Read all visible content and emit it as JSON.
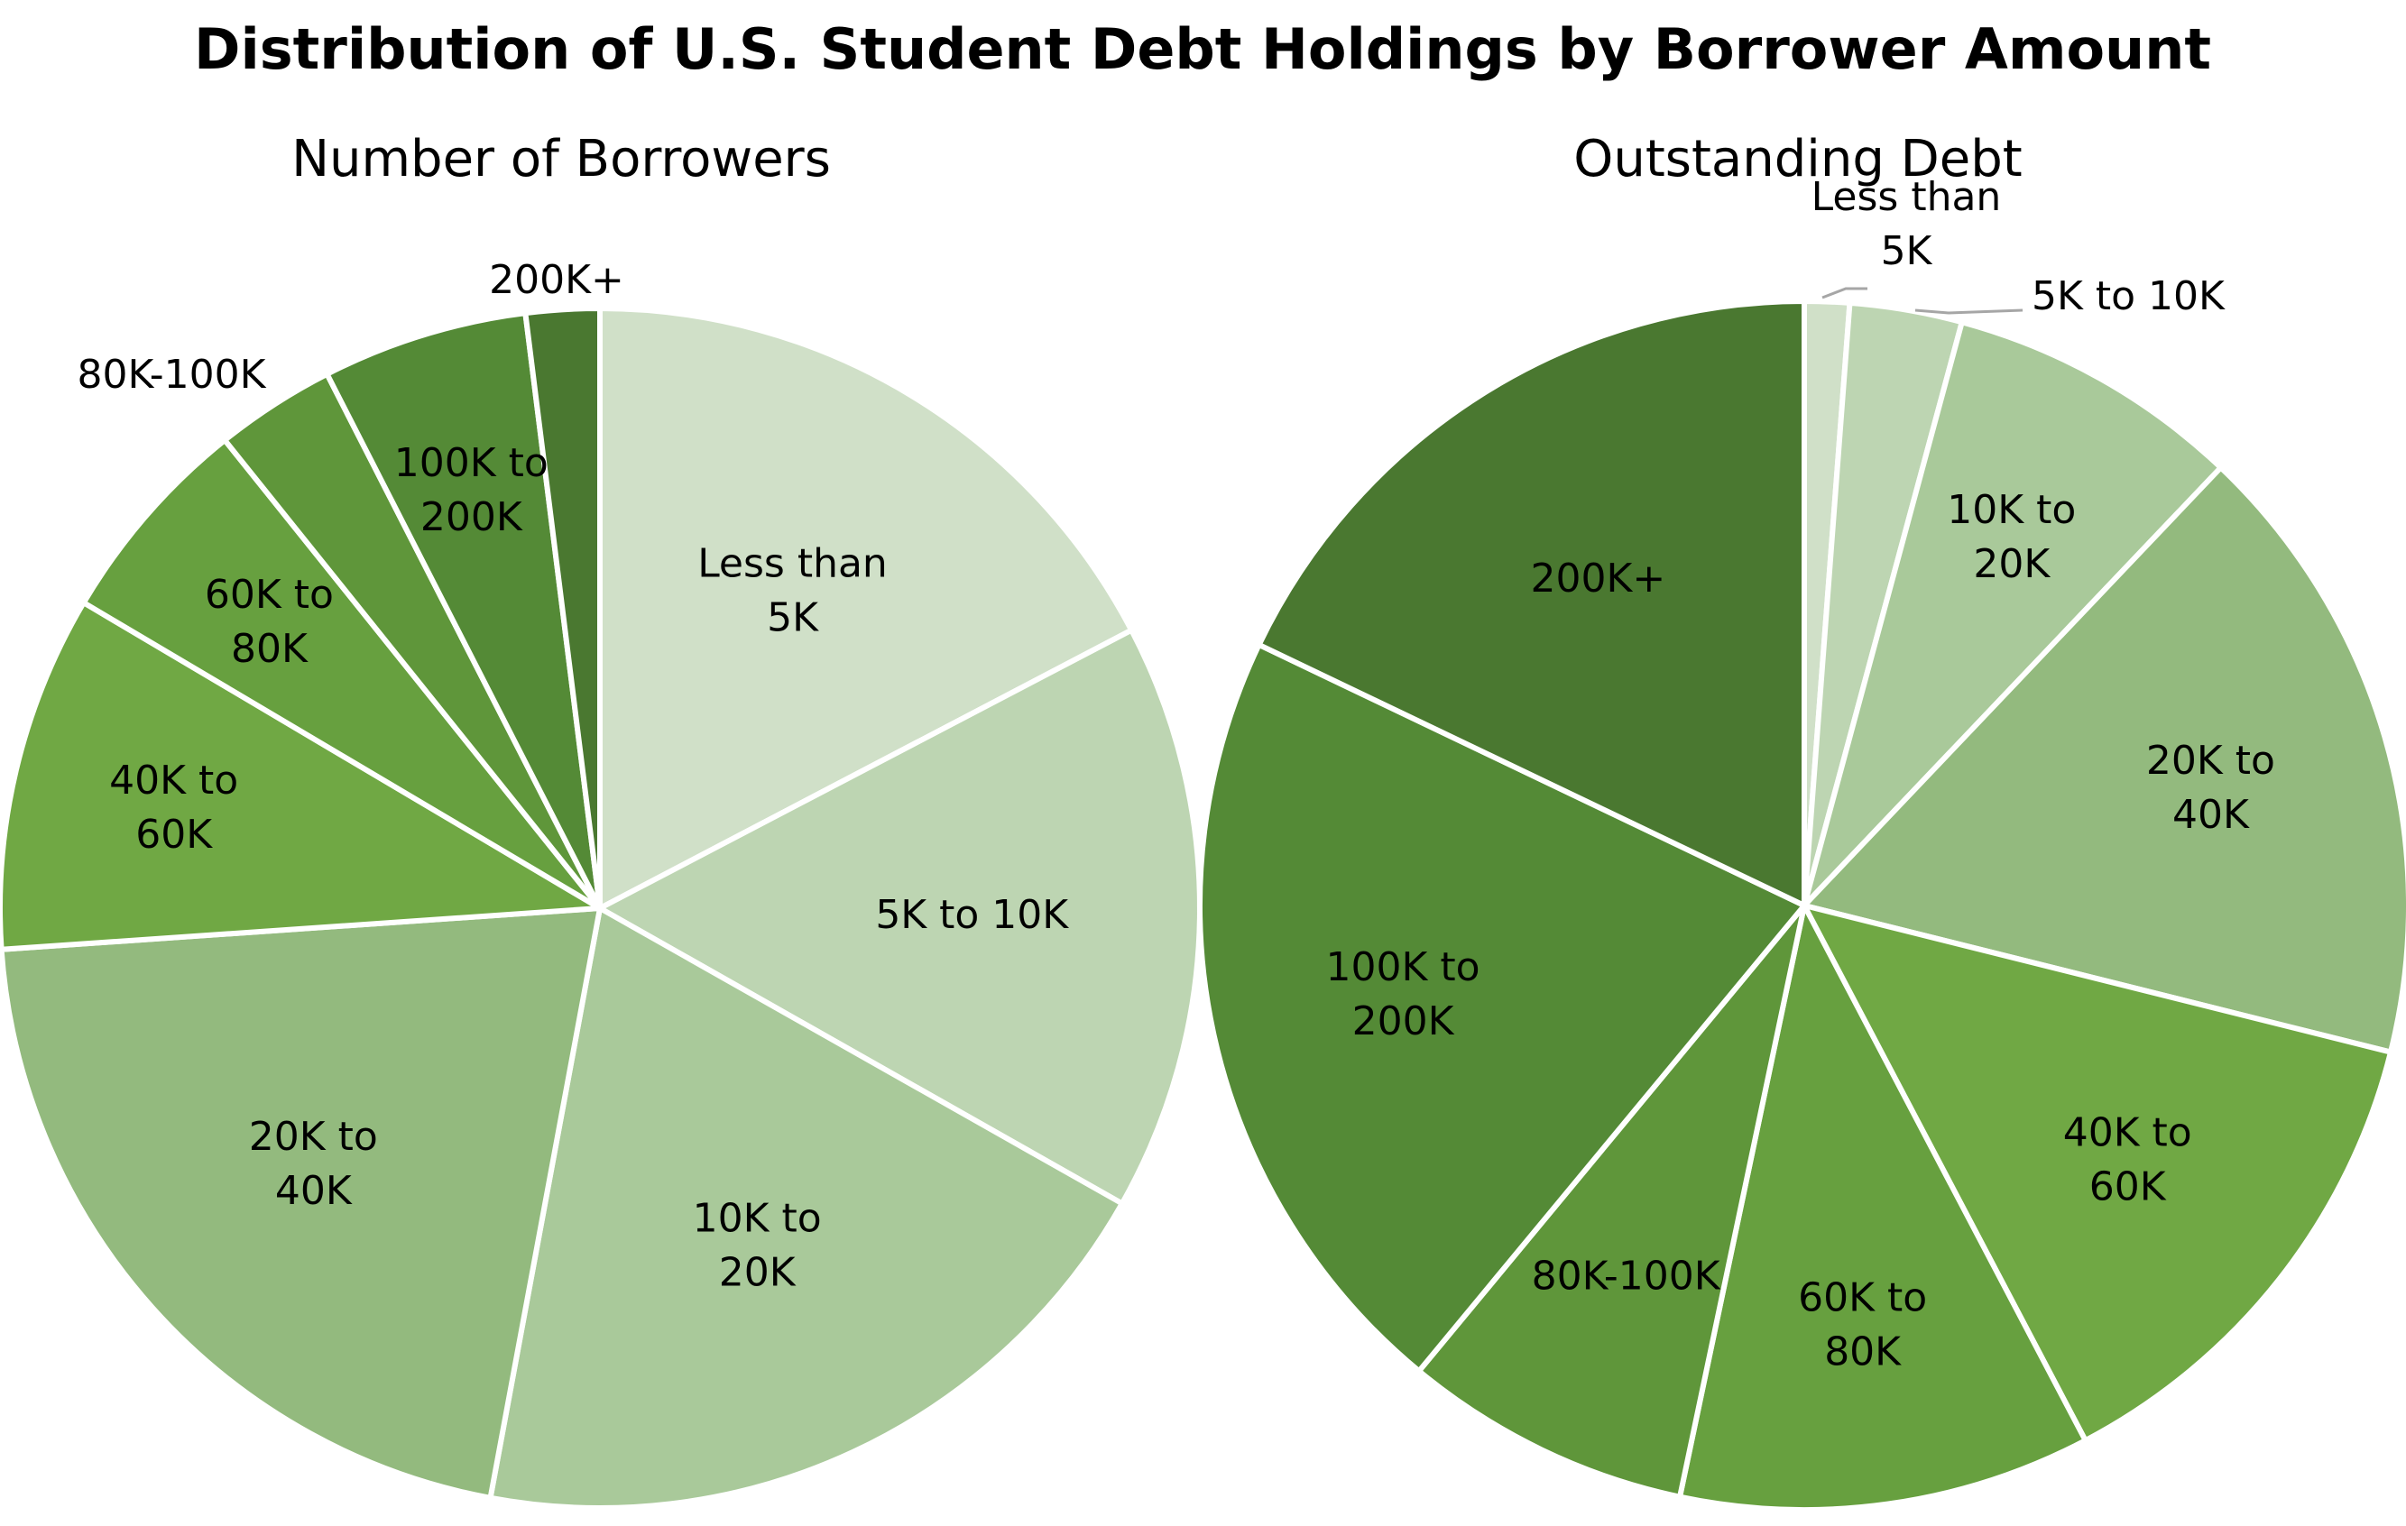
{
  "chart_data": [
    {
      "type": "pie",
      "title": "Distribution of U.S. Student Debt Holdings by Borrower Amount",
      "subtitle": "Number of Borrowers",
      "categories": [
        "Less than 5K",
        "5K to 10K",
        "10K to 20K",
        "20K to 40K",
        "40K to 60K",
        "60K to 80K",
        "80K-100K",
        "100K to 200K",
        "200K+"
      ],
      "values": [
        16.6,
        15.2,
        18.9,
        20.1,
        9.2,
        5.5,
        3.1,
        5.3,
        1.9
      ],
      "colors": [
        "#d0e0c8",
        "#bdd5b2",
        "#a9c99a",
        "#93ba7e",
        "#70a844",
        "#67a03f",
        "#5f963a",
        "#548a36",
        "#4a7830"
      ],
      "legend": "none"
    },
    {
      "type": "pie",
      "subtitle": "Outstanding Debt",
      "categories": [
        "Less than 5K",
        "5K to 10K",
        "10K to 20K",
        "20K to 40K",
        "40K to 60K",
        "60K to 80K",
        "80K-100K",
        "100K to 200K",
        "200K+"
      ],
      "values": [
        1.2,
        3.0,
        7.9,
        16.8,
        13.4,
        11.0,
        7.7,
        21.1,
        17.9
      ],
      "colors": [
        "#d0e0c8",
        "#bdd5b2",
        "#a9c99a",
        "#93ba7e",
        "#70a844",
        "#67a03f",
        "#5f963a",
        "#548a36",
        "#4a7830"
      ],
      "legend": "none"
    }
  ],
  "chart1_labels": [
    [
      "Less than",
      "5K"
    ],
    [
      "5K to 10K"
    ],
    [
      "10K to",
      "20K"
    ],
    [
      "20K to",
      "40K"
    ],
    [
      "40K to",
      "60K"
    ],
    [
      "60K to",
      "80K"
    ],
    [
      "80K-100K"
    ],
    [
      "100K to",
      "200K"
    ],
    [
      "200K+"
    ]
  ],
  "chart2_labels": [
    [
      "Less than",
      "5K"
    ],
    [
      "5K to 10K"
    ],
    [
      "10K to",
      "20K"
    ],
    [
      "20K to",
      "40K"
    ],
    [
      "40K to",
      "60K"
    ],
    [
      "60K to",
      "80K"
    ],
    [
      "80K-100K"
    ],
    [
      "100K to",
      "200K"
    ],
    [
      "200K+"
    ]
  ]
}
